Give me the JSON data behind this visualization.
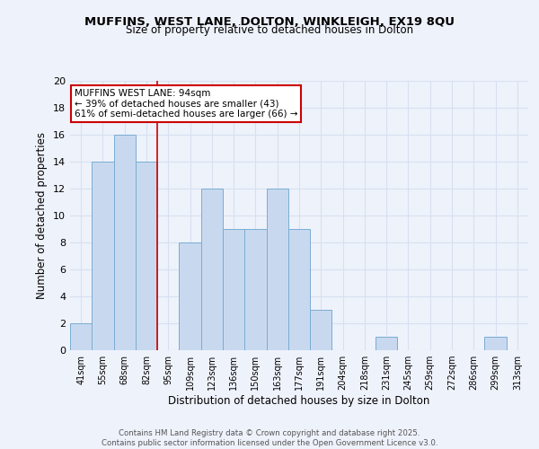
{
  "title1": "MUFFINS, WEST LANE, DOLTON, WINKLEIGH, EX19 8QU",
  "title2": "Size of property relative to detached houses in Dolton",
  "xlabel": "Distribution of detached houses by size in Dolton",
  "ylabel": "Number of detached properties",
  "categories": [
    "41sqm",
    "55sqm",
    "68sqm",
    "82sqm",
    "95sqm",
    "109sqm",
    "123sqm",
    "136sqm",
    "150sqm",
    "163sqm",
    "177sqm",
    "191sqm",
    "204sqm",
    "218sqm",
    "231sqm",
    "245sqm",
    "259sqm",
    "272sqm",
    "286sqm",
    "299sqm",
    "313sqm"
  ],
  "values": [
    2,
    14,
    16,
    14,
    0,
    8,
    12,
    9,
    9,
    12,
    9,
    3,
    0,
    0,
    1,
    0,
    0,
    0,
    0,
    1,
    0
  ],
  "bar_color": "#c8d9ef",
  "bar_edge_color": "#7aadd4",
  "vline_x_index": 4,
  "marker_label": "MUFFINS WEST LANE: 94sqm",
  "annotation_line1": "← 39% of detached houses are smaller (43)",
  "annotation_line2": "61% of semi-detached houses are larger (66) →",
  "annotation_box_color": "#ffffff",
  "annotation_box_edge": "#cc0000",
  "vline_color": "#cc0000",
  "ylim": [
    0,
    20
  ],
  "yticks": [
    0,
    2,
    4,
    6,
    8,
    10,
    12,
    14,
    16,
    18,
    20
  ],
  "footer1": "Contains HM Land Registry data © Crown copyright and database right 2025.",
  "footer2": "Contains public sector information licensed under the Open Government Licence v3.0.",
  "bg_color": "#eef2fb",
  "grid_color": "#d8e0f0"
}
